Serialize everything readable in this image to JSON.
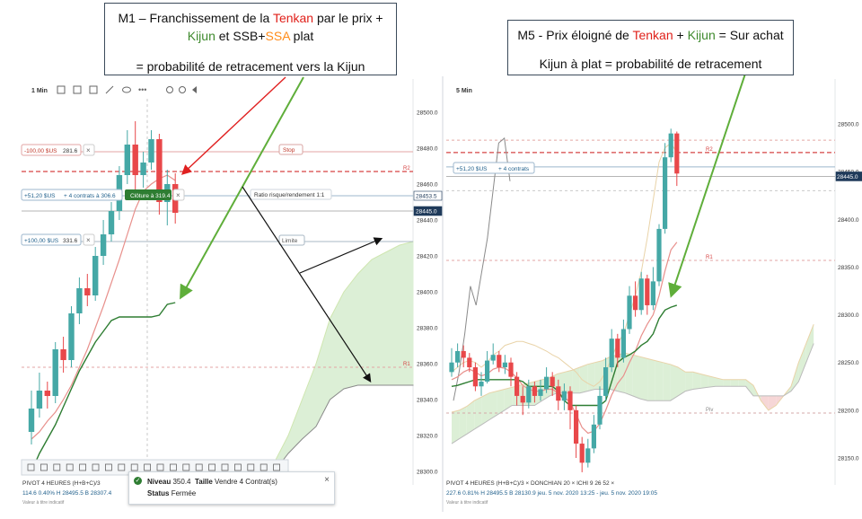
{
  "callout_left": {
    "p1": "M1 – Franchissement de la ",
    "p2": "Tenkan",
    "p3": " par le prix +",
    "p4": "Kijun",
    "p5": " et SSB+",
    "p6": "SSA",
    "p7": " plat",
    "p8": "= probabilité de retracement vers la Kijun"
  },
  "callout_right": {
    "p1": "M5 - Prix éloigné de ",
    "p2": "Tenkan",
    "p3": " + ",
    "p4": "Kijun",
    "p5": " = Sur achat",
    "p6": "Kijun à plat = probabilité de retracement"
  },
  "colors": {
    "up": "#45a8a6",
    "down": "#e8484a",
    "tenkan": "#e8908c",
    "kijun": "#2e7d32",
    "cloud": "#dcefd6",
    "cloud_red": "#f6d6d6",
    "arrow_red": "#e02020",
    "arrow_green": "#5fae3a",
    "price_line": "#8a8a8a"
  },
  "left_chart": {
    "timeframe": "1 Min",
    "y_ticks": [
      {
        "label": "28500.0",
        "value": 28500
      },
      {
        "label": "28480.0",
        "value": 28480
      },
      {
        "label": "28460.0",
        "value": 28460
      },
      {
        "label": "28440.0",
        "value": 28440
      },
      {
        "label": "28420.0",
        "value": 28420
      },
      {
        "label": "28400.0",
        "value": 28400
      },
      {
        "label": "28380.0",
        "value": 28380
      },
      {
        "label": "28360.0",
        "value": 28360
      },
      {
        "label": "28340.0",
        "value": 28340
      },
      {
        "label": "28320.0",
        "value": 28320
      },
      {
        "label": "28300.0",
        "value": 28300
      }
    ],
    "badges": [
      {
        "label": "28453.5",
        "value": 28453.5,
        "dark": false
      },
      {
        "label": "28445.0",
        "value": 28445,
        "dark": true
      }
    ],
    "levels": {
      "stop": 28478,
      "r2": 28467,
      "entry": 28453.5,
      "price": 28445,
      "limit": 28428,
      "r1": 28358
    },
    "stop_label": "Stop",
    "limit_label": "Limite",
    "risk_label": "Ratio risque/rendement 1:1",
    "r2_label": "R2",
    "r1_label": "R1",
    "order_stop": {
      "value": "-100,00 $US",
      "extra": "281.6",
      "close": "×"
    },
    "order_entry": {
      "value": "+51,20 $US",
      "extra": "+ 4 contrats à 306.6",
      "close": "×",
      "button": "Clôture à 319.4"
    },
    "order_limit": {
      "value": "+100,00 $US",
      "extra": "331.6",
      "close": "×"
    },
    "bottom_line1": "PIVOT  4 HEURES  (H+B+C)/3",
    "bottom_line2": "114.6   0.40%   H 28495.5   B 28307.4",
    "bottom_line3": "Valeur à titre indicatif",
    "toast": {
      "niveau_label": "Niveau",
      "niveau_value": "350.4",
      "taille_label": "Taille",
      "taille_value": "Vendre 4 Contrat(s)",
      "status_label": "Status",
      "status_value": "Fermée",
      "close": "×"
    },
    "candles": [
      {
        "o": 28322,
        "c": 28335,
        "h": 28345,
        "l": 28315
      },
      {
        "o": 28335,
        "c": 28345,
        "h": 28355,
        "l": 28330
      },
      {
        "o": 28345,
        "c": 28342,
        "h": 28350,
        "l": 28335
      },
      {
        "o": 28342,
        "c": 28368,
        "h": 28372,
        "l": 28338
      },
      {
        "o": 28368,
        "c": 28362,
        "h": 28375,
        "l": 28355
      },
      {
        "o": 28362,
        "c": 28388,
        "h": 28392,
        "l": 28358
      },
      {
        "o": 28388,
        "c": 28402,
        "h": 28408,
        "l": 28382
      },
      {
        "o": 28402,
        "c": 28398,
        "h": 28410,
        "l": 28392
      },
      {
        "o": 28398,
        "c": 28420,
        "h": 28425,
        "l": 28395
      },
      {
        "o": 28420,
        "c": 28432,
        "h": 28440,
        "l": 28415
      },
      {
        "o": 28432,
        "c": 28445,
        "h": 28450,
        "l": 28428
      },
      {
        "o": 28445,
        "c": 28465,
        "h": 28470,
        "l": 28440
      },
      {
        "o": 28465,
        "c": 28482,
        "h": 28490,
        "l": 28460
      },
      {
        "o": 28482,
        "c": 28465,
        "h": 28495,
        "l": 28455
      },
      {
        "o": 28465,
        "c": 28472,
        "h": 28478,
        "l": 28458
      },
      {
        "o": 28472,
        "c": 28485,
        "h": 28490,
        "l": 28468
      },
      {
        "o": 28485,
        "c": 28450,
        "h": 28488,
        "l": 28443
      },
      {
        "o": 28450,
        "c": 28460,
        "h": 28468,
        "l": 28437
      },
      {
        "o": 28460,
        "c": 28444,
        "h": 28466,
        "l": 28438
      }
    ],
    "tenkan": [
      28318,
      28322,
      28328,
      28333,
      28340,
      28348,
      28358,
      28368,
      28380,
      28392,
      28405,
      28418,
      28432,
      28446,
      28456,
      28460,
      28463,
      28465,
      28462
    ],
    "kijun": [
      28300,
      28310,
      28318,
      28326,
      28336,
      28346,
      28356,
      28364,
      28372,
      28378,
      28384,
      28386,
      28386,
      28386,
      28386,
      28386,
      28387,
      28393,
      28394
    ],
    "cloud_top": [
      28300,
      28305,
      28320,
      28340,
      28360,
      28385,
      28400,
      28410,
      28418,
      28422,
      28426,
      28428
    ],
    "cloud_bot": [
      28295,
      28300,
      28310,
      28318,
      28325,
      28340,
      28346,
      28348,
      28348,
      28348,
      28348,
      28348
    ]
  },
  "right_chart": {
    "timeframe": "5 Min",
    "y_ticks": [
      {
        "label": "28500.0",
        "value": 28500
      },
      {
        "label": "28450.0",
        "value": 28450
      },
      {
        "label": "28400.0",
        "value": 28400
      },
      {
        "label": "28350.0",
        "value": 28350
      },
      {
        "label": "28300.0",
        "value": 28300
      },
      {
        "label": "28250.0",
        "value": 28250
      },
      {
        "label": "28200.0",
        "value": 28200
      },
      {
        "label": "28150.0",
        "value": 28150
      }
    ],
    "badges": [
      {
        "label": "28445.0",
        "value": 28445,
        "dark": true
      }
    ],
    "levels": {
      "r2": 28470,
      "entry": 28455,
      "price": 28445,
      "r1": 28357,
      "pivot": 28197
    },
    "r2_label": "R2",
    "r1_label": "R1",
    "pivot_label": "Piv",
    "order_entry": {
      "value": "+51,20 $US",
      "extra": "+ 4 contrats"
    },
    "bottom_line1": "PIVOT  4 HEURES  (H+B+C)/3  ×    DONCHIAN  20  ×    ICHI  9  26  52  ×",
    "bottom_line2": "227.6   0.81%   H 28495.5   B 28130.9   jeu. 5 nov. 2020 13:25 - jeu. 5 nov. 2020 19:05",
    "bottom_line3": "Valeur à titre indicatif",
    "candles": [
      {
        "o": 28240,
        "c": 28250,
        "h": 28265,
        "l": 28235
      },
      {
        "o": 28250,
        "c": 28262,
        "h": 28270,
        "l": 28245
      },
      {
        "o": 28262,
        "c": 28255,
        "h": 28268,
        "l": 28245
      },
      {
        "o": 28255,
        "c": 28245,
        "h": 28260,
        "l": 28240
      },
      {
        "o": 28245,
        "c": 28225,
        "h": 28250,
        "l": 28220
      },
      {
        "o": 28225,
        "c": 28230,
        "h": 28240,
        "l": 28215
      },
      {
        "o": 28230,
        "c": 28252,
        "h": 28262,
        "l": 28228
      },
      {
        "o": 28252,
        "c": 28258,
        "h": 28270,
        "l": 28248
      },
      {
        "o": 28258,
        "c": 28245,
        "h": 28262,
        "l": 28240
      },
      {
        "o": 28245,
        "c": 28250,
        "h": 28258,
        "l": 28238
      },
      {
        "o": 28250,
        "c": 28235,
        "h": 28255,
        "l": 28225
      },
      {
        "o": 28235,
        "c": 28215,
        "h": 28240,
        "l": 28205
      },
      {
        "o": 28215,
        "c": 28208,
        "h": 28225,
        "l": 28195
      },
      {
        "o": 28208,
        "c": 28225,
        "h": 28232,
        "l": 28202
      },
      {
        "o": 28225,
        "c": 28215,
        "h": 28230,
        "l": 28208
      },
      {
        "o": 28215,
        "c": 28222,
        "h": 28232,
        "l": 28210
      },
      {
        "o": 28222,
        "c": 28235,
        "h": 28245,
        "l": 28218
      },
      {
        "o": 28235,
        "c": 28225,
        "h": 28240,
        "l": 28215
      },
      {
        "o": 28225,
        "c": 28210,
        "h": 28232,
        "l": 28200
      },
      {
        "o": 28210,
        "c": 28220,
        "h": 28228,
        "l": 28200
      },
      {
        "o": 28220,
        "c": 28200,
        "h": 28225,
        "l": 28180
      },
      {
        "o": 28200,
        "c": 28165,
        "h": 28205,
        "l": 28150
      },
      {
        "o": 28165,
        "c": 28145,
        "h": 28172,
        "l": 28135
      },
      {
        "o": 28145,
        "c": 28160,
        "h": 28170,
        "l": 28140
      },
      {
        "o": 28160,
        "c": 28185,
        "h": 28195,
        "l": 28155
      },
      {
        "o": 28185,
        "c": 28215,
        "h": 28225,
        "l": 28180
      },
      {
        "o": 28215,
        "c": 28245,
        "h": 28255,
        "l": 28210
      },
      {
        "o": 28245,
        "c": 28275,
        "h": 28285,
        "l": 28240
      },
      {
        "o": 28275,
        "c": 28255,
        "h": 28280,
        "l": 28245
      },
      {
        "o": 28255,
        "c": 28285,
        "h": 28295,
        "l": 28250
      },
      {
        "o": 28285,
        "c": 28320,
        "h": 28330,
        "l": 28280
      },
      {
        "o": 28320,
        "c": 28305,
        "h": 28335,
        "l": 28298
      },
      {
        "o": 28305,
        "c": 28338,
        "h": 28345,
        "l": 28300
      },
      {
        "o": 28338,
        "c": 28310,
        "h": 28342,
        "l": 28300
      },
      {
        "o": 28310,
        "c": 28335,
        "h": 28350,
        "l": 28305
      },
      {
        "o": 28335,
        "c": 28390,
        "h": 28395,
        "l": 28330
      },
      {
        "o": 28390,
        "c": 28465,
        "h": 28480,
        "l": 28385
      },
      {
        "o": 28465,
        "c": 28490,
        "h": 28495,
        "l": 28460
      },
      {
        "o": 28490,
        "c": 28448,
        "h": 28492,
        "l": 28435
      }
    ],
    "tenkan": [
      28232,
      28235,
      28240,
      28243,
      28240,
      28236,
      28238,
      28243,
      28245,
      28244,
      28240,
      28234,
      28226,
      28222,
      28220,
      28220,
      28222,
      28222,
      28218,
      28214,
      28208,
      28196,
      28182,
      28176,
      28178,
      28186,
      28200,
      28216,
      28228,
      28236,
      28250,
      28262,
      28278,
      28290,
      28300,
      28320,
      28346,
      28368,
      28376
    ],
    "kijun": [
      28225,
      28226,
      28228,
      28230,
      28232,
      28232,
      28232,
      28232,
      28232,
      28232,
      28232,
      28232,
      28230,
      28225,
      28225,
      28225,
      28225,
      28225,
      28220,
      28210,
      28205,
      28205,
      28205,
      28205,
      28205,
      28205,
      28210,
      28230,
      28250,
      28255,
      28258,
      28262,
      28268,
      28272,
      28280,
      28296,
      28305,
      28308,
      28310
    ],
    "cloud_a": [
      28198,
      28200,
      28204,
      28210,
      28214,
      28218,
      28220,
      28222,
      28224,
      28226,
      28228,
      28230,
      28232,
      28234,
      28238,
      28240,
      28242,
      28245,
      28248,
      28250,
      28252,
      28256,
      28258,
      28260,
      28258,
      28256,
      28254,
      28252,
      28250,
      28248,
      28245,
      28240,
      28240,
      28238,
      28236,
      28234,
      28232,
      28232,
      28232,
      28232,
      28226,
      28210,
      28200,
      28205,
      28215,
      28225,
      28250,
      28270,
      28290
    ],
    "cloud_b": [
      28165,
      28170,
      28175,
      28180,
      28185,
      28190,
      28195,
      28200,
      28205,
      28205,
      28205,
      28205,
      28210,
      28215,
      28218,
      28218,
      28218,
      28218,
      28220,
      28222,
      28222,
      28222,
      28220,
      28218,
      28215,
      28212,
      28210,
      28210,
      28210,
      28210,
      28215,
      28220,
      28222,
      28223,
      28224,
      28225,
      28225,
      28225,
      28225,
      28225,
      28215,
      28215,
      28215,
      28215,
      28215,
      28220,
      28230,
      28250,
      28270
    ],
    "donchian": [
      28240,
      28245,
      28250,
      28252,
      28250,
      28245,
      28250,
      28258,
      28262,
      28268,
      28270,
      28272,
      28272,
      28270,
      28268,
      28265,
      28262,
      28258,
      28255,
      28250,
      28245,
      28240,
      28232,
      28228,
      28225,
      28230,
      28240,
      28255,
      28270,
      28280,
      28300,
      28320,
      28345,
      28380,
      28420,
      28460,
      28475,
      28480,
      28470
    ],
    "price_line": [
      28210,
      28240,
      28280,
      28330,
      28310,
      28345,
      28380,
      28430,
      28480,
      28485,
      28440
    ]
  }
}
